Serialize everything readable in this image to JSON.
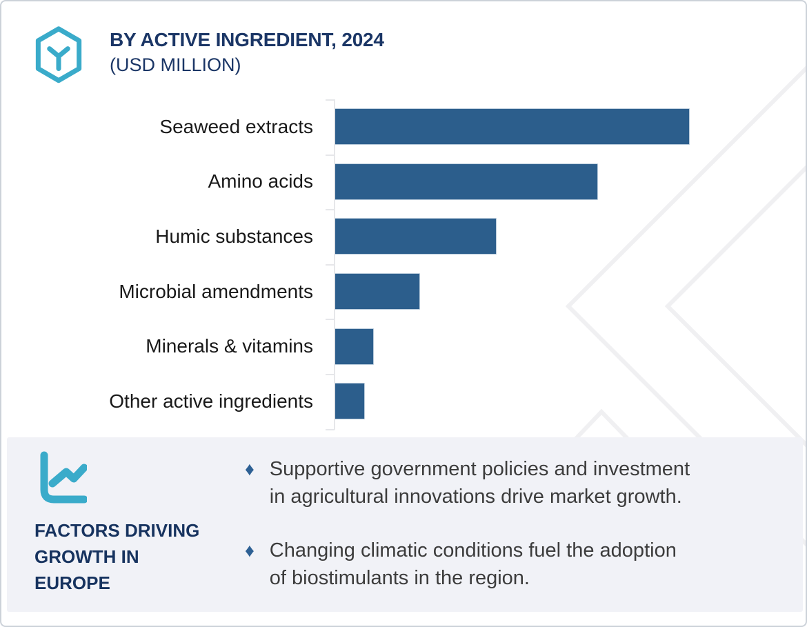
{
  "header": {
    "title_line1": "BY ACTIVE INGREDIENT, 2024",
    "title_line2": "(USD MILLION)"
  },
  "chart_data": {
    "type": "bar",
    "orientation": "horizontal",
    "title": "BY ACTIVE INGREDIENT, 2024 (USD MILLION)",
    "xlabel": "",
    "ylabel": "",
    "categories": [
      "Seaweed extracts",
      "Amino acids",
      "Humic substances",
      "Microbial amendments",
      "Minerals & vitamins",
      "Other active ingredients"
    ],
    "values": [
      515,
      382,
      235,
      124,
      57,
      44
    ],
    "values_note": "axis has no numeric labels; values are estimated relative bar lengths in pixels",
    "axis_numeric_labels_visible": false,
    "grid": false,
    "legend": false,
    "bar_color": "#2c5e8c"
  },
  "factors": {
    "heading": "FACTORS DRIVING\nGROWTH IN\nEUROPE",
    "bullets": [
      "Supportive government policies and investment\nin agricultural innovations drive market growth.",
      "Changing climatic conditions fuel the adoption\nof biostimulants in the region."
    ]
  },
  "icons": {
    "logo": "hexagon-y-logo",
    "factors": "line-chart-icon",
    "bullet": "diamond-icon",
    "diamond_glyph": "♦"
  },
  "colors": {
    "bar_blue": "#2c5e8c",
    "bar_border": "#b9cbdb",
    "navy_text": "#1b3666",
    "heading_navy": "#17335f",
    "label_black": "#191919",
    "body_gray": "#3c3c3c",
    "teal_accent": "#3aabca",
    "panel_bg": "#f1f2f7",
    "bullet_blue": "#2d6094",
    "watermark_gray": "#f0f0f2",
    "card_border": "#ccd2d9",
    "axis_gray": "#e6e7ea"
  }
}
